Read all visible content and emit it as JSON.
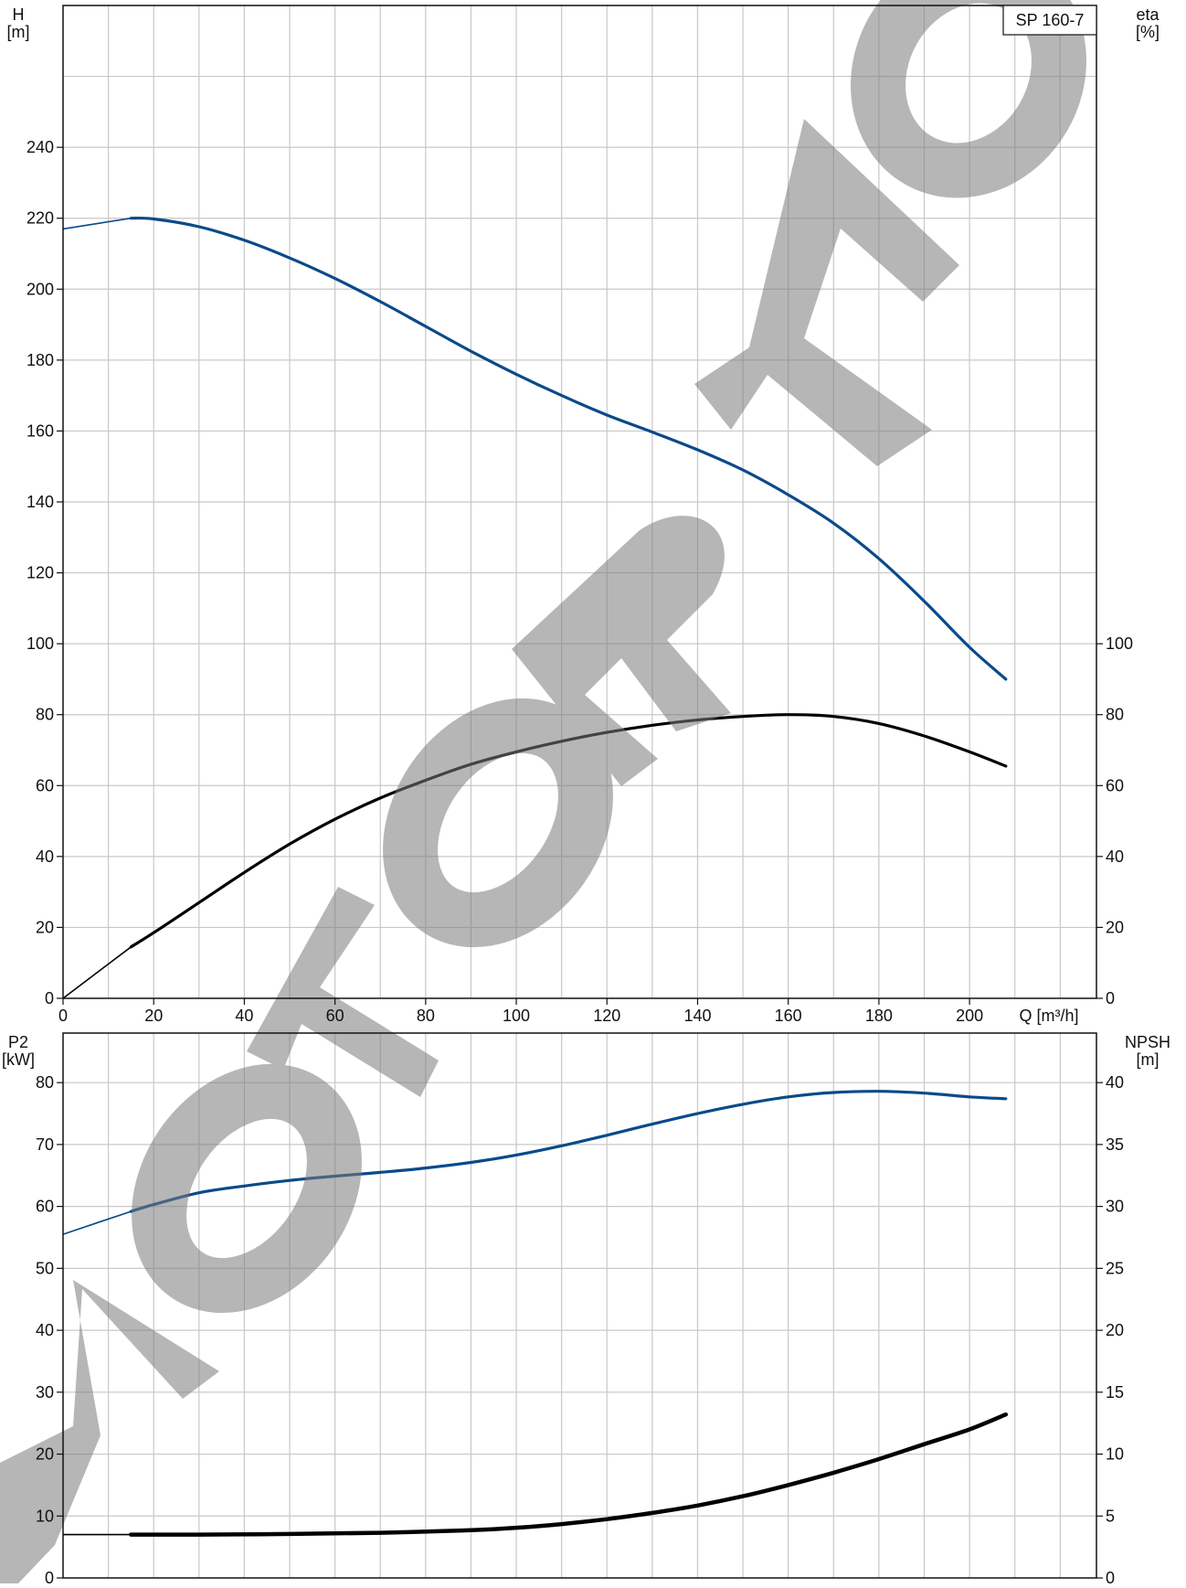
{
  "chart_data": [
    {
      "type": "line",
      "title": "SP 160-7",
      "xlabel": "Q [m³/h]",
      "x_ticks": [
        0,
        20,
        40,
        60,
        80,
        100,
        120,
        140,
        160,
        180,
        200
      ],
      "xlim": [
        0,
        228
      ],
      "y_left": {
        "label_lines": [
          "H",
          "[m]"
        ],
        "ylim": [
          0,
          280
        ],
        "ticks": [
          0,
          20,
          40,
          60,
          80,
          100,
          120,
          140,
          160,
          180,
          200,
          220,
          240
        ]
      },
      "y_right": {
        "label_lines": [
          "eta",
          "[%]"
        ],
        "ylim": [
          0,
          280
        ],
        "ticks": [
          0,
          20,
          40,
          60,
          80,
          100
        ]
      },
      "series": [
        {
          "color": "#0a4a8a",
          "axis": "left",
          "extrapolated": [
            [
              0,
              217
            ],
            [
              15,
              220
            ]
          ],
          "x": [
            15,
            20,
            30,
            40,
            50,
            60,
            70,
            80,
            90,
            100,
            110,
            120,
            130,
            140,
            150,
            160,
            170,
            180,
            190,
            200,
            208
          ],
          "y": [
            220,
            219.8,
            217.6,
            213.8,
            208.8,
            203,
            196.5,
            189.5,
            182.5,
            176,
            170,
            164.5,
            159.7,
            154.7,
            149,
            142,
            134,
            124,
            112,
            99,
            90
          ]
        },
        {
          "color": "#000000",
          "axis": "right",
          "extrapolated": [
            [
              0,
              0
            ],
            [
              15,
              14.5
            ]
          ],
          "x": [
            15,
            20,
            30,
            40,
            50,
            60,
            70,
            80,
            90,
            100,
            110,
            120,
            130,
            140,
            150,
            160,
            170,
            180,
            190,
            200,
            208
          ],
          "y": [
            14.5,
            18.5,
            27,
            35.5,
            43.5,
            50.5,
            56.5,
            61.5,
            66,
            69.5,
            72.5,
            75,
            77,
            78.5,
            79.5,
            80,
            79.5,
            77.5,
            74,
            69.5,
            65.5
          ]
        }
      ]
    },
    {
      "type": "line",
      "xlim": [
        0,
        228
      ],
      "y_left": {
        "label_lines": [
          "P2",
          "[kW]"
        ],
        "ylim": [
          0,
          88
        ],
        "ticks": [
          0,
          10,
          20,
          30,
          40,
          50,
          60,
          70,
          80
        ]
      },
      "y_right": {
        "label_lines": [
          "NPSH",
          "[m]"
        ],
        "ylim": [
          0,
          44
        ],
        "ticks": [
          0,
          5,
          10,
          15,
          20,
          25,
          30,
          35,
          40
        ]
      },
      "series": [
        {
          "color": "#0a4a8a",
          "axis": "left",
          "extrapolated": [
            [
              0,
              55.5
            ],
            [
              15,
              59.2
            ]
          ],
          "x": [
            15,
            20,
            30,
            40,
            50,
            60,
            70,
            80,
            90,
            100,
            110,
            120,
            130,
            140,
            150,
            160,
            170,
            180,
            190,
            200,
            208
          ],
          "y": [
            59.2,
            60.3,
            62.2,
            63.3,
            64.2,
            64.9,
            65.5,
            66.2,
            67.1,
            68.3,
            69.8,
            71.5,
            73.3,
            75,
            76.5,
            77.7,
            78.4,
            78.6,
            78.3,
            77.7,
            77.4
          ]
        },
        {
          "color": "#000000",
          "axis": "right",
          "extrapolated": [
            [
              0,
              3.5
            ],
            [
              15,
              3.5
            ]
          ],
          "x": [
            15,
            30,
            50,
            70,
            90,
            100,
            110,
            120,
            130,
            140,
            150,
            160,
            170,
            180,
            190,
            200,
            208
          ],
          "y": [
            3.5,
            3.5,
            3.55,
            3.65,
            3.85,
            4.05,
            4.35,
            4.75,
            5.25,
            5.85,
            6.6,
            7.5,
            8.5,
            9.6,
            10.8,
            12.0,
            13.2
          ]
        }
      ]
    }
  ],
  "watermark_text": "MOTOR MO"
}
